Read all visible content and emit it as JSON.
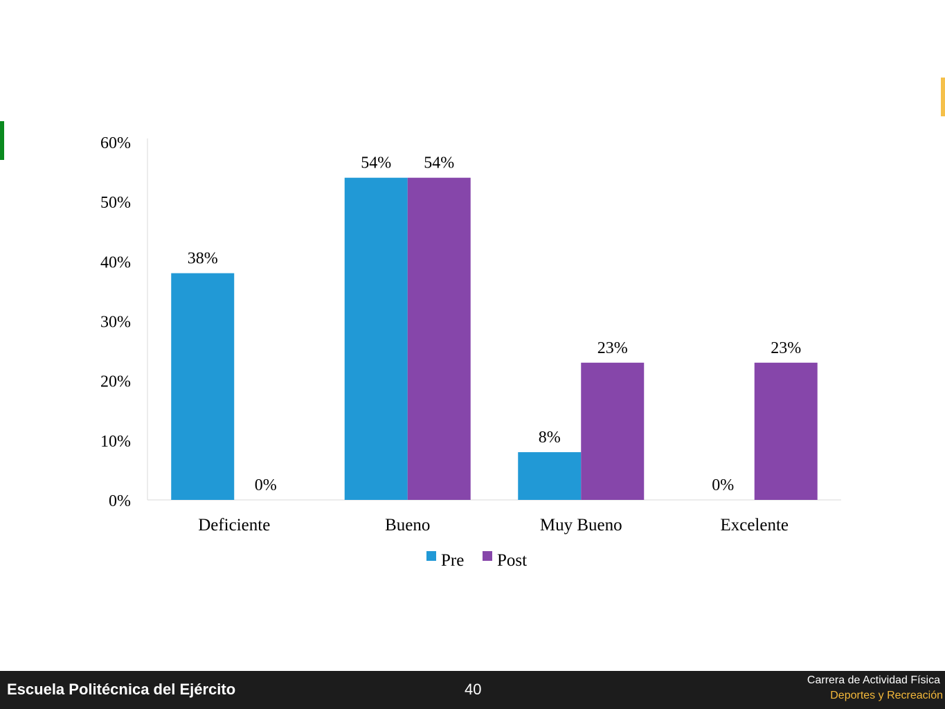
{
  "chart_data": {
    "type": "bar",
    "categories": [
      "Deficiente",
      "Bueno",
      "Muy Bueno",
      "Excelente"
    ],
    "series": [
      {
        "name": "Pre",
        "values": [
          38,
          54,
          8,
          0
        ],
        "labels": [
          "38%",
          "54%",
          "8%",
          "0%"
        ],
        "color": "#2199d6"
      },
      {
        "name": "Post",
        "values": [
          0,
          54,
          23,
          23
        ],
        "labels": [
          "0%",
          "54%",
          "23%",
          "23%"
        ],
        "color": "#8646aa"
      }
    ],
    "ylim": [
      0,
      60
    ],
    "yticks": [
      0,
      10,
      20,
      30,
      40,
      50,
      60
    ],
    "ytick_labels": [
      "0%",
      "10%",
      "20%",
      "30%",
      "40%",
      "50%",
      "60%"
    ],
    "grid": false,
    "legend_position": "bottom"
  },
  "footer": {
    "school": "Escuela Politécnica del Ejército",
    "page_number": "40",
    "career_line1": "Carrera de Actividad Física",
    "career_line2": "Deportes y Recreación"
  },
  "colors": {
    "footer_bg": "#1c1c1c",
    "accent_green": "#0a8a1f",
    "accent_orange": "#f5c04a"
  }
}
